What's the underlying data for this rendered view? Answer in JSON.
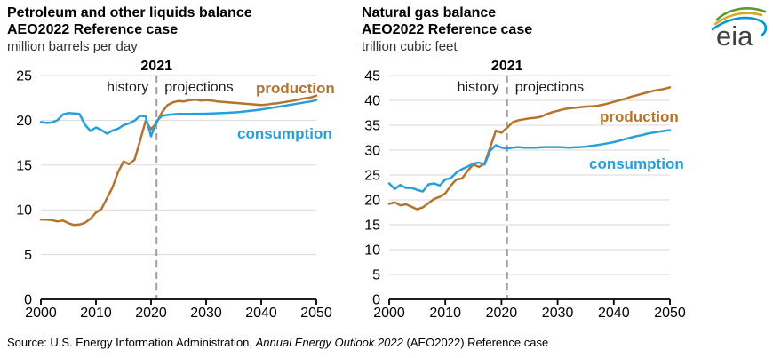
{
  "logo": {
    "text": "eia"
  },
  "footer": {
    "source_prefix": "Source: U.S. Energy Information Administration, ",
    "source_italic": "Annual Energy Outlook 2022",
    "source_suffix": " (AEO2022) Reference case"
  },
  "colors": {
    "production": "#b5732c",
    "consumption": "#26a0da",
    "grid": "#d9d9d9",
    "axis": "#000000",
    "divider": "#a0a0a0",
    "logo_text": "#414042",
    "logo_green": "#5d9732",
    "logo_gold": "#d9a823",
    "logo_blue": "#0096d7"
  },
  "chart_data": [
    {
      "type": "line",
      "title": "Petroleum and other liquids balance",
      "subtitle": "AEO2022 Reference case",
      "unit_label": "million barrels per day",
      "divider_year": 2021,
      "divider_label": "2021",
      "left_region_label": "history",
      "right_region_label": "projections",
      "ylim": [
        0,
        25
      ],
      "ytick_step": 5,
      "xticks": [
        2000,
        2010,
        2020,
        2030,
        2040,
        2050
      ],
      "x": [
        2000,
        2001,
        2002,
        2003,
        2004,
        2005,
        2006,
        2007,
        2008,
        2009,
        2010,
        2011,
        2012,
        2013,
        2014,
        2015,
        2016,
        2017,
        2018,
        2019,
        2020,
        2021,
        2022,
        2023,
        2024,
        2025,
        2026,
        2027,
        2028,
        2029,
        2030,
        2031,
        2032,
        2033,
        2034,
        2035,
        2036,
        2037,
        2038,
        2039,
        2040,
        2041,
        2042,
        2043,
        2044,
        2045,
        2046,
        2047,
        2048,
        2049,
        2050
      ],
      "series": [
        {
          "name": "production",
          "color": "#b5732c",
          "values": [
            8.9,
            8.9,
            8.85,
            8.7,
            8.8,
            8.5,
            8.3,
            8.35,
            8.55,
            9.0,
            9.7,
            10.1,
            11.3,
            12.5,
            14.2,
            15.4,
            15.1,
            15.6,
            17.7,
            19.9,
            19.0,
            19.7,
            20.9,
            21.7,
            22.0,
            22.15,
            22.1,
            22.25,
            22.3,
            22.2,
            22.25,
            22.2,
            22.1,
            22.05,
            22.0,
            21.95,
            21.9,
            21.85,
            21.8,
            21.75,
            21.7,
            21.75,
            21.85,
            21.9,
            22.0,
            22.1,
            22.2,
            22.35,
            22.45,
            22.55,
            22.75
          ]
        },
        {
          "name": "consumption",
          "color": "#26a0da",
          "values": [
            19.8,
            19.7,
            19.75,
            20.0,
            20.65,
            20.8,
            20.75,
            20.7,
            19.5,
            18.8,
            19.2,
            18.9,
            18.5,
            18.85,
            19.05,
            19.45,
            19.65,
            19.95,
            20.5,
            20.45,
            18.2,
            19.9,
            20.5,
            20.6,
            20.65,
            20.7,
            20.7,
            20.7,
            20.72,
            20.72,
            20.73,
            20.75,
            20.78,
            20.8,
            20.83,
            20.87,
            20.92,
            20.98,
            21.05,
            21.12,
            21.2,
            21.3,
            21.4,
            21.5,
            21.6,
            21.7,
            21.8,
            21.9,
            22.0,
            22.1,
            22.25
          ]
        }
      ]
    },
    {
      "type": "line",
      "title": "Natural gas balance",
      "subtitle": "AEO2022 Reference case",
      "unit_label": "trillion cubic feet",
      "divider_year": 2021,
      "divider_label": "2021",
      "left_region_label": "history",
      "right_region_label": "projections",
      "ylim": [
        0,
        45
      ],
      "ytick_step": 5,
      "xticks": [
        2000,
        2010,
        2020,
        2030,
        2040,
        2050
      ],
      "x": [
        2000,
        2001,
        2002,
        2003,
        2004,
        2005,
        2006,
        2007,
        2008,
        2009,
        2010,
        2011,
        2012,
        2013,
        2014,
        2015,
        2016,
        2017,
        2018,
        2019,
        2020,
        2021,
        2022,
        2023,
        2024,
        2025,
        2026,
        2027,
        2028,
        2029,
        2030,
        2031,
        2032,
        2033,
        2034,
        2035,
        2036,
        2037,
        2038,
        2039,
        2040,
        2041,
        2042,
        2043,
        2044,
        2045,
        2046,
        2047,
        2048,
        2049,
        2050
      ],
      "series": [
        {
          "name": "production",
          "color": "#b5732c",
          "values": [
            19.2,
            19.5,
            18.9,
            19.1,
            18.6,
            18.1,
            18.5,
            19.3,
            20.2,
            20.6,
            21.3,
            22.9,
            24.1,
            24.3,
            25.9,
            27.1,
            26.6,
            27.3,
            30.6,
            33.9,
            33.5,
            34.5,
            35.6,
            36.0,
            36.2,
            36.4,
            36.5,
            36.7,
            37.2,
            37.6,
            37.9,
            38.2,
            38.4,
            38.5,
            38.6,
            38.75,
            38.8,
            38.9,
            39.1,
            39.4,
            39.7,
            40.0,
            40.3,
            40.7,
            41.0,
            41.3,
            41.6,
            41.9,
            42.1,
            42.3,
            42.6
          ]
        },
        {
          "name": "consumption",
          "color": "#26a0da",
          "values": [
            23.3,
            22.2,
            23.0,
            22.4,
            22.4,
            22.0,
            21.7,
            23.1,
            23.3,
            22.9,
            24.1,
            24.4,
            25.5,
            26.2,
            26.7,
            27.3,
            27.5,
            27.1,
            29.9,
            31.0,
            30.5,
            30.3,
            30.5,
            30.6,
            30.5,
            30.5,
            30.5,
            30.55,
            30.6,
            30.6,
            30.6,
            30.55,
            30.5,
            30.55,
            30.6,
            30.7,
            30.85,
            31.0,
            31.2,
            31.4,
            31.6,
            31.9,
            32.2,
            32.5,
            32.8,
            33.0,
            33.3,
            33.5,
            33.7,
            33.85,
            34.0
          ]
        }
      ]
    }
  ]
}
